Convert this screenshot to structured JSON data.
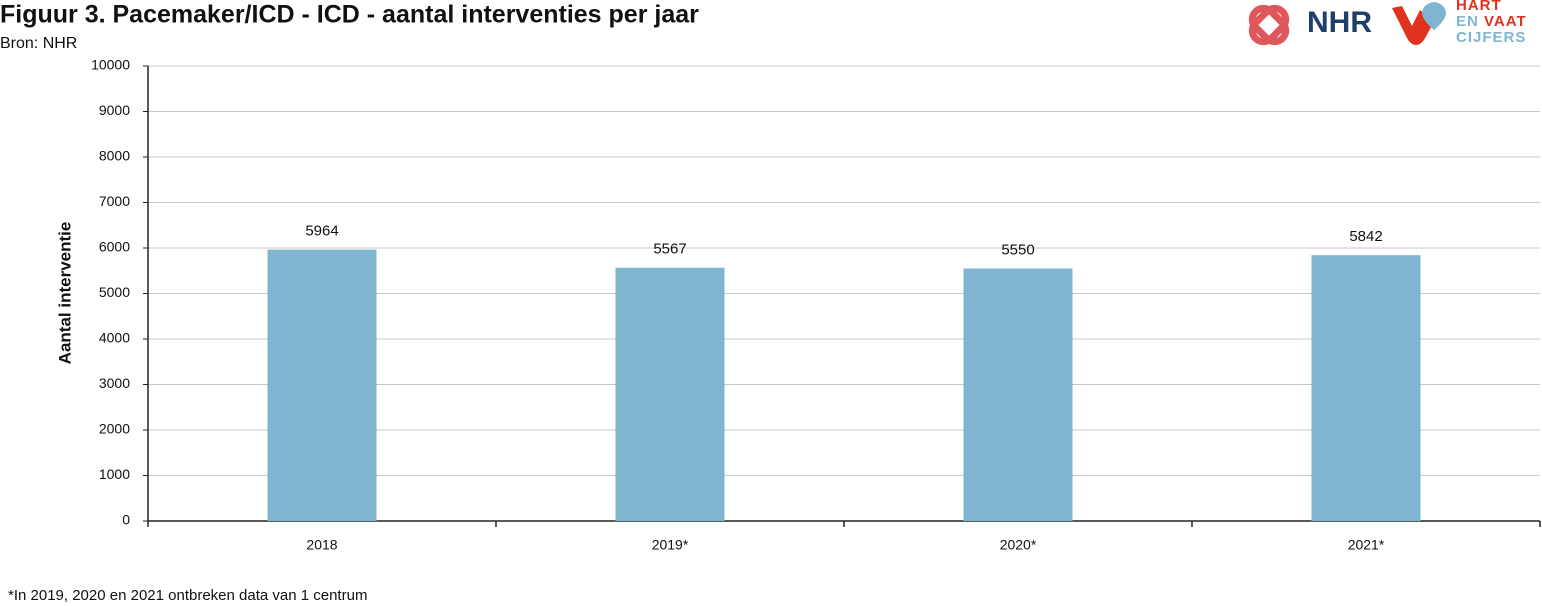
{
  "logo": {
    "name": "NHR",
    "lines": [
      "HART",
      "EN",
      "VAAT",
      "CIJFERS"
    ]
  },
  "chart_data": {
    "type": "bar",
    "title": "Figuur 3. Pacemaker/ICD - ICD - aantal interventies per jaar",
    "subtitle": "Bron: NHR",
    "y_label": "Aantal interventie",
    "footnote": "*In 2019, 2020 en 2021 ontbreken data van 1 centrum",
    "categories": [
      "2018",
      "2019*",
      "2020*",
      "2021*"
    ],
    "values": [
      5964,
      5567,
      5550,
      5842
    ],
    "color": "#7fb5d1",
    "ylim": [
      0,
      10000
    ],
    "yticks": [
      0,
      1000,
      2000,
      3000,
      4000,
      5000,
      6000,
      7000,
      8000,
      9000,
      10000
    ],
    "grid": true
  }
}
